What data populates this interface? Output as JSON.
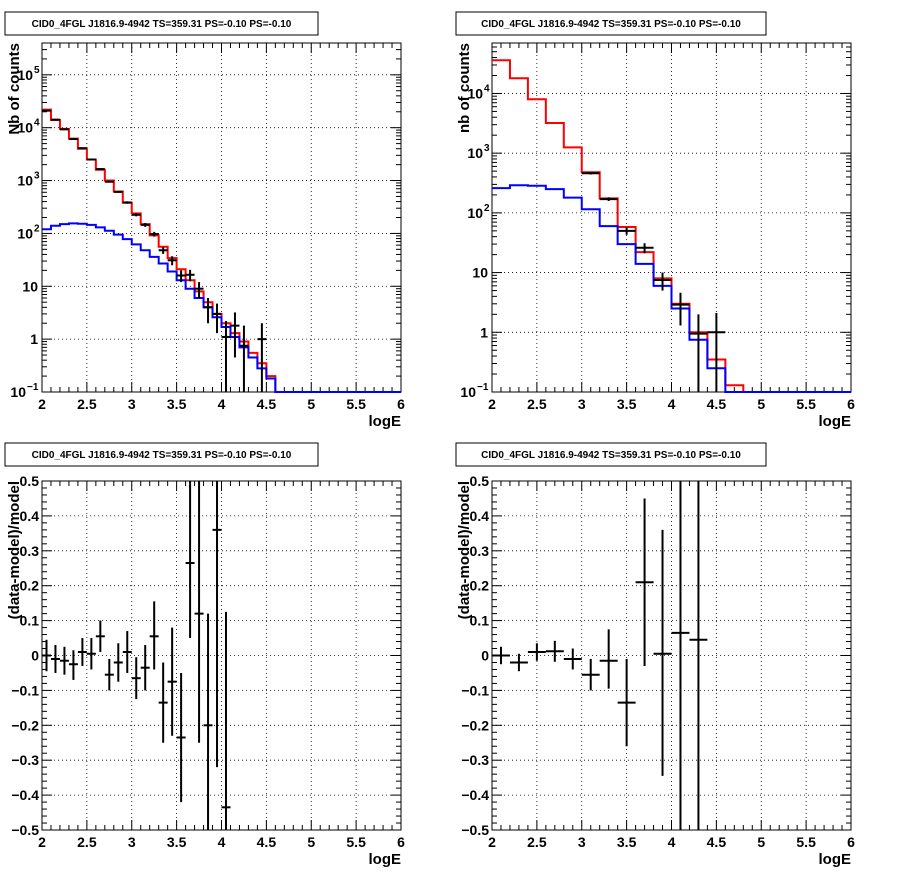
{
  "colors": {
    "data": "#000000",
    "total_model": "#ff0000",
    "source_model": "#0000ff",
    "background": "#ffffff"
  },
  "chart_data": [
    {
      "type": "line",
      "title": "CID0_4FGL J1816.9-4942 TS=359.31 PS=-0.10 PS=-0.10",
      "xlabel": "logE",
      "ylabel": "Nb of counts",
      "xlim": [
        2,
        6
      ],
      "ylim": [
        0.1,
        400000
      ],
      "log_y": true,
      "grid": true,
      "x_ticks": [
        "2",
        "2.5",
        "3",
        "3.5",
        "4",
        "4.5",
        "5",
        "5.5",
        "6"
      ],
      "y_ticks": [
        {
          "v": 0.1,
          "base": "10",
          "exp": "−1"
        },
        {
          "v": 1,
          "base": "1",
          "exp": ""
        },
        {
          "v": 10,
          "base": "10",
          "exp": ""
        },
        {
          "v": 100,
          "base": "10",
          "exp": "2"
        },
        {
          "v": 1000,
          "base": "10",
          "exp": "3"
        },
        {
          "v": 10000,
          "base": "10",
          "exp": "4"
        },
        {
          "v": 100000,
          "base": "10",
          "exp": "5"
        }
      ],
      "series": [
        {
          "name": "",
          "kind": "step",
          "color": "#ff0000",
          "edges": [
            2,
            2.1,
            2.2,
            2.3,
            2.4,
            2.5,
            2.6,
            2.7,
            2.8,
            2.9,
            3,
            3.1,
            3.2,
            3.3,
            3.4,
            3.5,
            3.6,
            3.7,
            3.8,
            3.9,
            4,
            4.1,
            4.2,
            4.3,
            4.4,
            4.5,
            4.6,
            4.7,
            4.8,
            4.9,
            5,
            5.1,
            5.2,
            5.3,
            5.4,
            5.5,
            5.6,
            5.7,
            5.8,
            5.9,
            6
          ],
          "values": [
            22000,
            14000,
            9500,
            6200,
            4000,
            2500,
            1600,
            1000,
            620,
            380,
            240,
            150,
            92,
            56,
            34,
            21,
            13,
            8,
            5,
            3,
            2,
            1.3,
            0.9,
            0.55,
            0.35,
            0.2,
            0.1,
            0.1,
            0.1,
            0.1,
            0.1,
            0.1,
            0.1,
            0.1,
            0.1,
            0.1,
            0.1,
            0.1,
            0.1,
            0.1
          ]
        },
        {
          "name": "",
          "kind": "step",
          "color": "#0000ff",
          "edges": [
            2,
            2.1,
            2.2,
            2.3,
            2.4,
            2.5,
            2.6,
            2.7,
            2.8,
            2.9,
            3,
            3.1,
            3.2,
            3.3,
            3.4,
            3.5,
            3.6,
            3.7,
            3.8,
            3.9,
            4,
            4.1,
            4.2,
            4.3,
            4.4,
            4.5,
            4.6,
            4.7,
            4.8,
            4.9,
            5,
            5.1,
            5.2,
            5.3,
            5.4,
            5.5,
            5.6,
            5.7,
            5.8,
            5.9,
            6
          ],
          "values": [
            120,
            140,
            150,
            155,
            152,
            145,
            130,
            112,
            95,
            78,
            62,
            48,
            36,
            27,
            19,
            13,
            9,
            6,
            4,
            2.6,
            1.7,
            1.1,
            0.7,
            0.45,
            0.28,
            0.18,
            0.1,
            0.1,
            0.1,
            0.1,
            0.1,
            0.1,
            0.1,
            0.1,
            0.1,
            0.1,
            0.1,
            0.1,
            0.1,
            0.1
          ]
        }
      ],
      "points": [
        {
          "x": 2.05,
          "y": 21000,
          "lo": 20800,
          "hi": 21200
        },
        {
          "x": 2.15,
          "y": 14200,
          "lo": 14000,
          "hi": 14400
        },
        {
          "x": 2.25,
          "y": 9300,
          "lo": 9150,
          "hi": 9450
        },
        {
          "x": 2.35,
          "y": 6100,
          "lo": 6000,
          "hi": 6200
        },
        {
          "x": 2.45,
          "y": 4100,
          "lo": 4020,
          "hi": 4180
        },
        {
          "x": 2.55,
          "y": 2500,
          "lo": 2450,
          "hi": 2550
        },
        {
          "x": 2.65,
          "y": 1650,
          "lo": 1610,
          "hi": 1690
        },
        {
          "x": 2.75,
          "y": 950,
          "lo": 920,
          "hi": 980
        },
        {
          "x": 2.85,
          "y": 610,
          "lo": 590,
          "hi": 630
        },
        {
          "x": 2.95,
          "y": 385,
          "lo": 365,
          "hi": 405
        },
        {
          "x": 3.05,
          "y": 225,
          "lo": 210,
          "hi": 240
        },
        {
          "x": 3.15,
          "y": 145,
          "lo": 133,
          "hi": 157
        },
        {
          "x": 3.25,
          "y": 97,
          "lo": 87,
          "hi": 107
        },
        {
          "x": 3.35,
          "y": 48,
          "lo": 41,
          "hi": 55
        },
        {
          "x": 3.45,
          "y": 31,
          "lo": 25,
          "hi": 37
        },
        {
          "x": 3.55,
          "y": 16,
          "lo": 12,
          "hi": 20
        },
        {
          "x": 3.65,
          "y": 16.5,
          "lo": 12.5,
          "hi": 20.5
        },
        {
          "x": 3.75,
          "y": 9,
          "lo": 6,
          "hi": 12
        },
        {
          "x": 3.85,
          "y": 4,
          "lo": 2,
          "hi": 6
        },
        {
          "x": 3.95,
          "y": 3,
          "lo": 1.3,
          "hi": 4.7
        },
        {
          "x": 4.05,
          "y": 1.1,
          "lo": 0.1,
          "hi": 2.2
        },
        {
          "x": 4.15,
          "y": 1.8,
          "lo": 0.45,
          "hi": 3.2
        },
        {
          "x": 4.25,
          "y": 0.75,
          "lo": 0.1,
          "hi": 1.8
        },
        {
          "x": 4.45,
          "y": 1,
          "lo": 0.1,
          "hi": 2
        }
      ]
    },
    {
      "type": "line",
      "title": "CID0_4FGL J1816.9-4942 TS=359.31 PS=-0.10 PS=-0.10",
      "xlabel": "logE",
      "ylabel": "nb of counts",
      "xlim": [
        2,
        6
      ],
      "ylim": [
        0.1,
        70000
      ],
      "log_y": true,
      "grid": true,
      "x_ticks": [
        "2",
        "2.5",
        "3",
        "3.5",
        "4",
        "4.5",
        "5",
        "5.5",
        "6"
      ],
      "y_ticks": [
        {
          "v": 0.1,
          "base": "10",
          "exp": "−1"
        },
        {
          "v": 1,
          "base": "1",
          "exp": ""
        },
        {
          "v": 10,
          "base": "10",
          "exp": ""
        },
        {
          "v": 100,
          "base": "10",
          "exp": "2"
        },
        {
          "v": 1000,
          "base": "10",
          "exp": "3"
        },
        {
          "v": 10000,
          "base": "10",
          "exp": "4"
        }
      ],
      "series": [
        {
          "name": "",
          "kind": "step",
          "color": "#ff0000",
          "edges": [
            2,
            2.2,
            2.4,
            2.6,
            2.8,
            3,
            3.2,
            3.4,
            3.6,
            3.8,
            4,
            4.2,
            4.4,
            4.6,
            4.8,
            5,
            5.2,
            5.4,
            5.6,
            5.8,
            6
          ],
          "values": [
            36000,
            18000,
            8000,
            3200,
            1250,
            480,
            175,
            58,
            22,
            8,
            3,
            1,
            0.35,
            0.13,
            0.1,
            0.1,
            0.1,
            0.1,
            0.1,
            0.1
          ]
        },
        {
          "name": "",
          "kind": "step",
          "color": "#0000ff",
          "edges": [
            2,
            2.2,
            2.4,
            2.6,
            2.8,
            3,
            3.2,
            3.4,
            3.6,
            3.8,
            4,
            4.2,
            4.4,
            4.6,
            4.8,
            5,
            5.2,
            5.4,
            5.6,
            5.8,
            6
          ],
          "values": [
            260,
            290,
            285,
            250,
            180,
            115,
            60,
            30,
            14,
            6,
            2.5,
            0.75,
            0.25,
            0.1,
            0.1,
            0.1,
            0.1,
            0.1,
            0.1,
            0.1
          ]
        }
      ],
      "points": [
        {
          "x": 3.1,
          "y": 460,
          "lo": 440,
          "hi": 480
        },
        {
          "x": 3.3,
          "y": 170,
          "lo": 158,
          "hi": 182
        },
        {
          "x": 3.5,
          "y": 50,
          "lo": 43,
          "hi": 57
        },
        {
          "x": 3.7,
          "y": 26,
          "lo": 21,
          "hi": 31
        },
        {
          "x": 3.9,
          "y": 7.5,
          "lo": 5,
          "hi": 10
        },
        {
          "x": 4.1,
          "y": 2.9,
          "lo": 1.3,
          "hi": 4.6
        },
        {
          "x": 4.3,
          "y": 0.95,
          "lo": 0.1,
          "hi": 2
        },
        {
          "x": 4.5,
          "y": 1,
          "lo": 0.1,
          "hi": 2.1
        }
      ]
    },
    {
      "type": "scatter",
      "title": "CID0_4FGL J1816.9-4942 TS=359.31 PS=-0.10 PS=-0.10",
      "xlabel": "logE",
      "ylabel": "(data-model)/model",
      "xlim": [
        2,
        6
      ],
      "ylim": [
        -0.5,
        0.5
      ],
      "log_y": false,
      "grid": true,
      "x_ticks": [
        "2",
        "2.5",
        "3",
        "3.5",
        "4",
        "4.5",
        "5",
        "5.5",
        "6"
      ],
      "y_ticks": [
        {
          "v": -0.5,
          "label": "−0.5"
        },
        {
          "v": -0.4,
          "label": "−0.4"
        },
        {
          "v": -0.3,
          "label": "−0.3"
        },
        {
          "v": -0.2,
          "label": "−0.2"
        },
        {
          "v": -0.1,
          "label": "−0.1"
        },
        {
          "v": 0,
          "label": "0"
        },
        {
          "v": 0.1,
          "label": "0.1"
        },
        {
          "v": 0.2,
          "label": "0.2"
        },
        {
          "v": 0.3,
          "label": "0.3"
        },
        {
          "v": 0.4,
          "label": "0.4"
        },
        {
          "v": 0.5,
          "label": "0.5"
        }
      ],
      "points": [
        {
          "x": 2.05,
          "y": 0.0,
          "lo": -0.045,
          "hi": 0.045
        },
        {
          "x": 2.15,
          "y": -0.01,
          "lo": -0.05,
          "hi": 0.03
        },
        {
          "x": 2.25,
          "y": -0.015,
          "lo": -0.055,
          "hi": 0.025
        },
        {
          "x": 2.35,
          "y": -0.025,
          "lo": -0.07,
          "hi": 0.015
        },
        {
          "x": 2.45,
          "y": 0.01,
          "lo": -0.03,
          "hi": 0.05
        },
        {
          "x": 2.55,
          "y": 0.005,
          "lo": -0.04,
          "hi": 0.05
        },
        {
          "x": 2.65,
          "y": 0.055,
          "lo": 0.01,
          "hi": 0.1
        },
        {
          "x": 2.75,
          "y": -0.055,
          "lo": -0.1,
          "hi": -0.01
        },
        {
          "x": 2.85,
          "y": -0.02,
          "lo": -0.075,
          "hi": 0.035
        },
        {
          "x": 2.95,
          "y": 0.01,
          "lo": -0.05,
          "hi": 0.07
        },
        {
          "x": 3.05,
          "y": -0.065,
          "lo": -0.125,
          "hi": -0.005
        },
        {
          "x": 3.15,
          "y": -0.035,
          "lo": -0.1,
          "hi": 0.03
        },
        {
          "x": 3.25,
          "y": 0.055,
          "lo": -0.04,
          "hi": 0.155
        },
        {
          "x": 3.35,
          "y": -0.135,
          "lo": -0.25,
          "hi": -0.02
        },
        {
          "x": 3.45,
          "y": -0.075,
          "lo": -0.23,
          "hi": 0.08
        },
        {
          "x": 3.55,
          "y": -0.235,
          "lo": -0.42,
          "hi": -0.05
        },
        {
          "x": 3.65,
          "y": 0.265,
          "lo": 0.05,
          "hi": 0.5
        },
        {
          "x": 3.75,
          "y": 0.12,
          "lo": -0.25,
          "hi": 0.5
        },
        {
          "x": 3.85,
          "y": -0.2,
          "lo": -0.5,
          "hi": 0.12
        },
        {
          "x": 3.95,
          "y": 0.36,
          "lo": -0.32,
          "hi": 0.5
        },
        {
          "x": 4.05,
          "y": -0.435,
          "lo": -0.5,
          "hi": 0.125
        }
      ]
    },
    {
      "type": "scatter",
      "title": "CID0_4FGL J1816.9-4942 TS=359.31 PS=-0.10 PS=-0.10",
      "xlabel": "logE",
      "ylabel": "(data-model)/model",
      "xlim": [
        2,
        6
      ],
      "ylim": [
        -0.5,
        0.5
      ],
      "log_y": false,
      "grid": true,
      "x_ticks": [
        "2",
        "2.5",
        "3",
        "3.5",
        "4",
        "4.5",
        "5",
        "5.5",
        "6"
      ],
      "y_ticks": [
        {
          "v": -0.5,
          "label": "−0.5"
        },
        {
          "v": -0.4,
          "label": "−0.4"
        },
        {
          "v": -0.3,
          "label": "−0.3"
        },
        {
          "v": -0.2,
          "label": "−0.2"
        },
        {
          "v": -0.1,
          "label": "−0.1"
        },
        {
          "v": 0,
          "label": "0"
        },
        {
          "v": 0.1,
          "label": "0.1"
        },
        {
          "v": 0.2,
          "label": "0.2"
        },
        {
          "v": 0.3,
          "label": "0.3"
        },
        {
          "v": 0.4,
          "label": "0.4"
        },
        {
          "v": 0.5,
          "label": "0.5"
        }
      ],
      "points": [
        {
          "x": 2.1,
          "y": 0.0,
          "lo": -0.025,
          "hi": 0.025
        },
        {
          "x": 2.3,
          "y": -0.02,
          "lo": -0.045,
          "hi": 0.005
        },
        {
          "x": 2.5,
          "y": 0.01,
          "lo": -0.015,
          "hi": 0.035
        },
        {
          "x": 2.7,
          "y": 0.012,
          "lo": -0.018,
          "hi": 0.042
        },
        {
          "x": 2.9,
          "y": -0.01,
          "lo": -0.04,
          "hi": 0.02
        },
        {
          "x": 3.1,
          "y": -0.055,
          "lo": -0.1,
          "hi": -0.01
        },
        {
          "x": 3.3,
          "y": -0.015,
          "lo": -0.095,
          "hi": 0.075
        },
        {
          "x": 3.5,
          "y": -0.135,
          "lo": -0.26,
          "hi": -0.01
        },
        {
          "x": 3.7,
          "y": 0.21,
          "lo": -0.03,
          "hi": 0.45
        },
        {
          "x": 3.9,
          "y": 0.005,
          "lo": -0.345,
          "hi": 0.36
        },
        {
          "x": 4.1,
          "y": 0.065,
          "lo": -0.5,
          "hi": 0.5
        },
        {
          "x": 4.3,
          "y": 0.045,
          "lo": -0.5,
          "hi": 0.5
        }
      ]
    }
  ]
}
